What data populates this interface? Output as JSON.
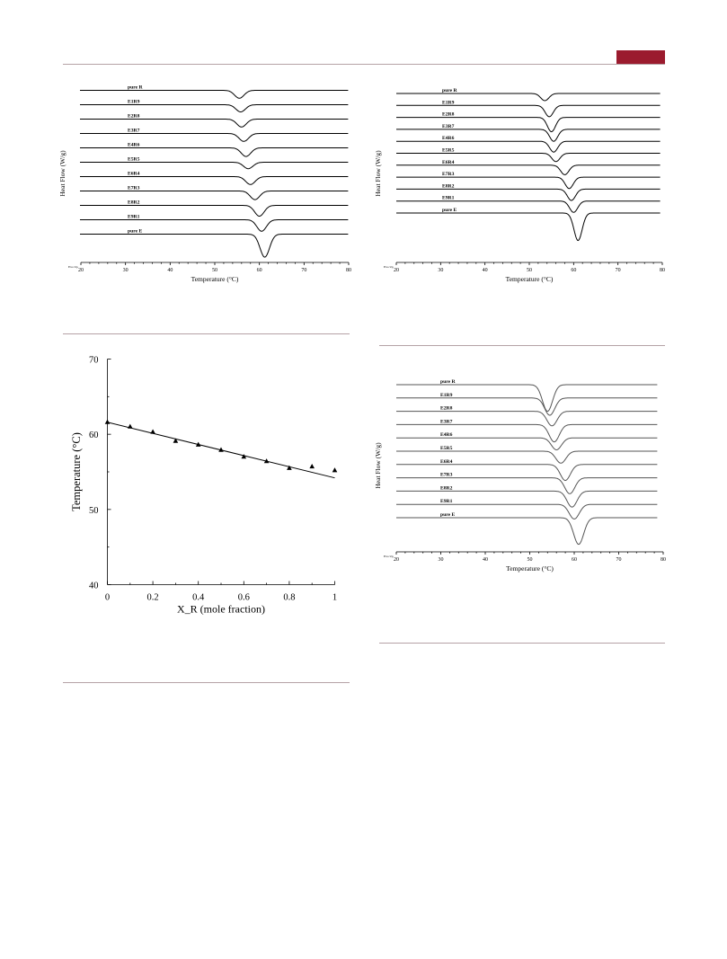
{
  "page": {
    "accent_color": "#9b1b2e",
    "rule_color": "#b5a2a6"
  },
  "chart_data": [
    {
      "type": "line",
      "panel": "top-left",
      "xlabel": "Temperature (°C)",
      "ylabel": "Heat Flow (W/g)",
      "xlim": [
        20,
        80
      ],
      "x_ticks": [
        "20",
        "30",
        "40",
        "50",
        "60",
        "70",
        "80"
      ],
      "corner_label": "Exo Up",
      "series": [
        {
          "name": "pure R",
          "peak_x": 55.5,
          "depth": 0.55
        },
        {
          "name": "E1R9",
          "peak_x": 55.8,
          "depth": 0.5
        },
        {
          "name": "E2R8",
          "peak_x": 56.0,
          "depth": 0.55
        },
        {
          "name": "E3R7",
          "peak_x": 56.5,
          "depth": 0.55
        },
        {
          "name": "E4R6",
          "peak_x": 57.0,
          "depth": 0.6
        },
        {
          "name": "E5R5",
          "peak_x": 57.5,
          "depth": 0.45
        },
        {
          "name": "E6R4",
          "peak_x": 58.0,
          "depth": 0.55
        },
        {
          "name": "E7R3",
          "peak_x": 59.0,
          "depth": 0.6
        },
        {
          "name": "E8R2",
          "peak_x": 60.0,
          "depth": 0.75
        },
        {
          "name": "E9R1",
          "peak_x": 60.5,
          "depth": 0.8
        },
        {
          "name": "pure E",
          "peak_x": 61.2,
          "depth": 1.6
        }
      ]
    },
    {
      "type": "line",
      "panel": "top-right",
      "xlabel": "Temperature (°C)",
      "ylabel": "Heat Flow (W/g)",
      "xlim": [
        20,
        80
      ],
      "x_ticks": [
        "20",
        "30",
        "40",
        "50",
        "60",
        "70",
        "80"
      ],
      "corner_label": "Exo Up",
      "series": [
        {
          "name": "pure R",
          "peak_x": 53.5,
          "depth": 0.6
        },
        {
          "name": "E1R9",
          "peak_x": 54.5,
          "depth": 0.95
        },
        {
          "name": "E2R8",
          "peak_x": 55.0,
          "depth": 1.2
        },
        {
          "name": "E3R7",
          "peak_x": 55.5,
          "depth": 1.0
        },
        {
          "name": "E4R6",
          "peak_x": 55.5,
          "depth": 0.9
        },
        {
          "name": "E5R5",
          "peak_x": 56.0,
          "depth": 0.7
        },
        {
          "name": "E6R4",
          "peak_x": 58.0,
          "depth": 0.8
        },
        {
          "name": "E7R3",
          "peak_x": 59.0,
          "depth": 0.95
        },
        {
          "name": "E8R2",
          "peak_x": 59.5,
          "depth": 0.95
        },
        {
          "name": "E9R1",
          "peak_x": 60.0,
          "depth": 0.95
        },
        {
          "name": "pure E",
          "peak_x": 61.0,
          "depth": 2.3
        }
      ]
    },
    {
      "type": "scatter",
      "panel": "middle-left",
      "xlabel": "X_R (mole fraction)",
      "ylabel": "Temperature (°C)",
      "xlim": [
        0,
        1
      ],
      "ylim": [
        40,
        70
      ],
      "x_ticks": [
        "0",
        "0.2",
        "0.4",
        "0.6",
        "0.8",
        "1"
      ],
      "y_ticks": [
        "40",
        "50",
        "60",
        "70"
      ],
      "points": {
        "x": [
          0,
          0.1,
          0.2,
          0.3,
          0.4,
          0.5,
          0.6,
          0.7,
          0.8,
          0.9,
          1.0
        ],
        "y": [
          61.6,
          61.0,
          60.3,
          59.1,
          58.6,
          57.9,
          57.0,
          56.4,
          55.5,
          55.7,
          55.2
        ]
      },
      "fit_line": {
        "x": [
          0,
          1
        ],
        "y": [
          61.6,
          54.2
        ]
      }
    },
    {
      "type": "line",
      "panel": "bottom-right",
      "xlabel": "Temperature (°C)",
      "ylabel": "Heat Flow (W/g)",
      "xlim": [
        20,
        80
      ],
      "x_ticks": [
        "20",
        "30",
        "40",
        "50",
        "60",
        "70",
        "80"
      ],
      "corner_label": "Exo Up",
      "series": [
        {
          "name": "pure R",
          "peak_x": 54.0,
          "depth": 2.0
        },
        {
          "name": "E1R9",
          "peak_x": 54.5,
          "depth": 1.3
        },
        {
          "name": "E2R8",
          "peak_x": 55.0,
          "depth": 1.1
        },
        {
          "name": "E3R7",
          "peak_x": 55.5,
          "depth": 1.3
        },
        {
          "name": "E4R6",
          "peak_x": 56.0,
          "depth": 0.9
        },
        {
          "name": "E5R5",
          "peak_x": 57.0,
          "depth": 0.9
        },
        {
          "name": "E6R4",
          "peak_x": 58.0,
          "depth": 1.2
        },
        {
          "name": "E7R3",
          "peak_x": 59.0,
          "depth": 1.2
        },
        {
          "name": "E8R2",
          "peak_x": 59.5,
          "depth": 1.2
        },
        {
          "name": "E9R1",
          "peak_x": 60.0,
          "depth": 1.1
        },
        {
          "name": "pure E",
          "peak_x": 61.0,
          "depth": 2.0
        }
      ]
    }
  ]
}
